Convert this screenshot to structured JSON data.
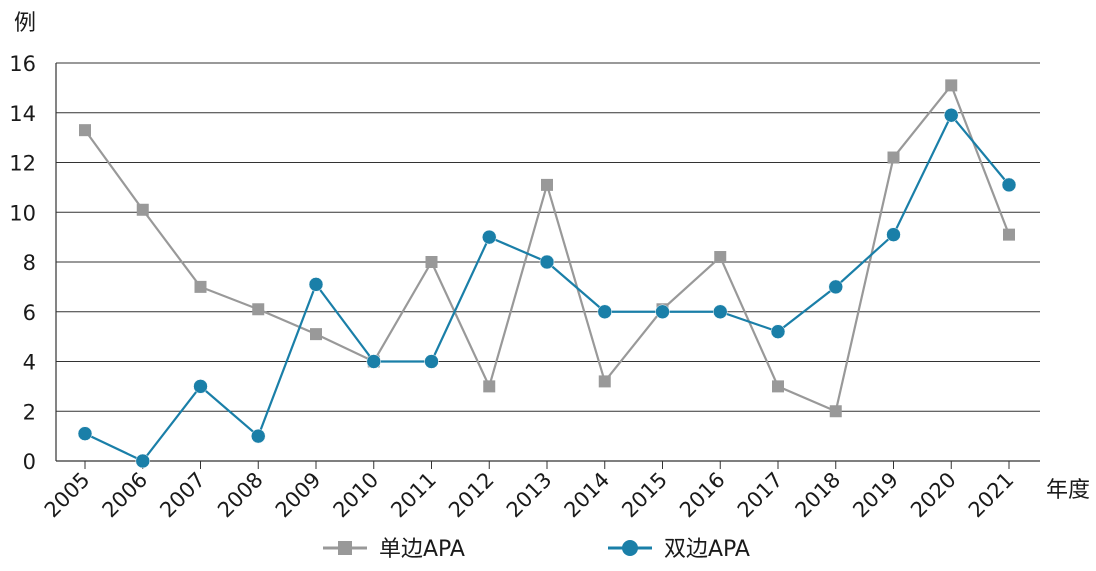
{
  "chart_data": {
    "type": "line",
    "title": "",
    "ylabel": "例",
    "xlabel": "年度",
    "ylim": [
      0,
      16
    ],
    "yticks": [
      0,
      2,
      4,
      6,
      8,
      10,
      12,
      14,
      16
    ],
    "grid": true,
    "legend_position": "bottom",
    "categories": [
      "2005",
      "2006",
      "2007",
      "2008",
      "2009",
      "2010",
      "2011",
      "2012",
      "2013",
      "2014",
      "2015",
      "2016",
      "2017",
      "2018",
      "2019",
      "2020",
      "2021"
    ],
    "series": [
      {
        "name": "单边APA",
        "marker": "square",
        "color": "#999999",
        "values": [
          13.3,
          10.1,
          7,
          6.1,
          5.1,
          4,
          8,
          3,
          11.1,
          3.2,
          6.1,
          8.2,
          3,
          2,
          12.2,
          15.1,
          9.1
        ]
      },
      {
        "name": "双边APA",
        "marker": "circle",
        "color": "#1a7fa8",
        "values": [
          1.1,
          0,
          3,
          1,
          7.1,
          4,
          4,
          9,
          8,
          6,
          6,
          6,
          5.2,
          7,
          9.1,
          13.9,
          11.1
        ]
      }
    ]
  }
}
